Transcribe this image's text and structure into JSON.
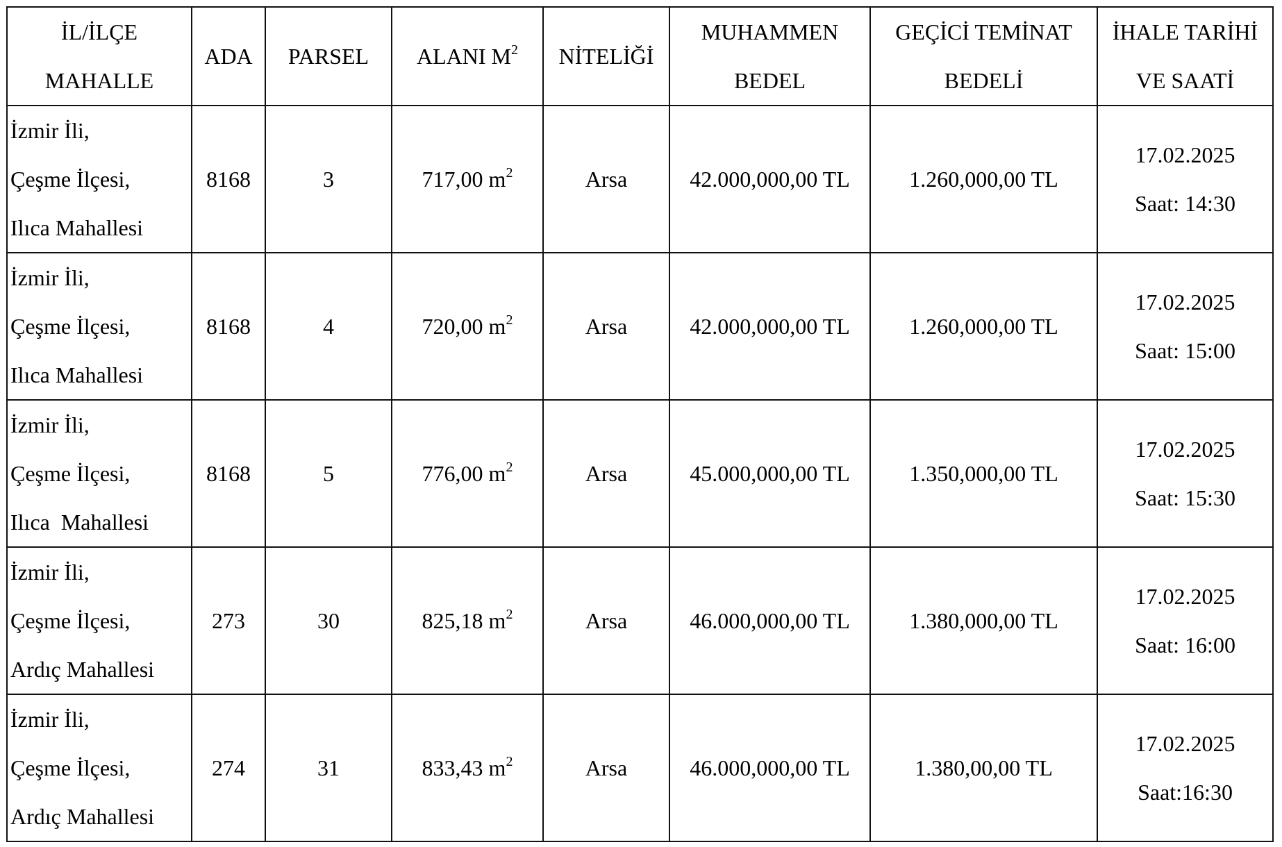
{
  "headers": [
    {
      "lines": [
        "İL/İLÇE",
        "MAHALLE"
      ]
    },
    {
      "lines": [
        "ADA"
      ]
    },
    {
      "lines": [
        "PARSEL"
      ]
    },
    {
      "lines": [
        "ALANI M"
      ],
      "sup": "2"
    },
    {
      "lines": [
        "NİTELİĞİ"
      ]
    },
    {
      "lines": [
        "MUHAMMEN",
        "BEDEL"
      ]
    },
    {
      "lines": [
        "GEÇİCİ TEMİNAT",
        "BEDELİ"
      ]
    },
    {
      "lines": [
        "İHALE TARİHİ",
        "VE SAATİ"
      ]
    }
  ],
  "rows": [
    {
      "location": [
        "İzmir İli,",
        "Çeşme İlçesi,",
        "Ilıca Mahallesi"
      ],
      "ada": "8168",
      "parsel": "3",
      "area": "717,00 m",
      "area_sup": "2",
      "type": "Arsa",
      "price": "42.000,000,00 TL",
      "deposit": "1.260,000,00 TL",
      "date": "17.02.2025",
      "time": "Saat: 14:30"
    },
    {
      "location": [
        "İzmir İli,",
        "Çeşme İlçesi,",
        "Ilıca Mahallesi"
      ],
      "ada": "8168",
      "parsel": "4",
      "area": "720,00 m",
      "area_sup": "2",
      "type": "Arsa",
      "price": "42.000,000,00 TL",
      "deposit": "1.260,000,00 TL",
      "date": "17.02.2025",
      "time": "Saat: 15:00"
    },
    {
      "location": [
        "İzmir İli,",
        "Çeşme İlçesi,",
        "Ilıca  Mahallesi"
      ],
      "ada": "8168",
      "parsel": "5",
      "area": "776,00 m",
      "area_sup": "2",
      "type": "Arsa",
      "price": "45.000,000,00 TL",
      "deposit": "1.350,000,00 TL",
      "date": "17.02.2025",
      "time": "Saat: 15:30"
    },
    {
      "location": [
        "İzmir İli,",
        "Çeşme İlçesi,",
        "Ardıç Mahallesi"
      ],
      "ada": "273",
      "parsel": "30",
      "area": "825,18 m",
      "area_sup": "2",
      "type": "Arsa",
      "price": "46.000,000,00 TL",
      "deposit": "1.380,000,00 TL",
      "date": "17.02.2025",
      "time": "Saat: 16:00"
    },
    {
      "location": [
        "İzmir İli,",
        "Çeşme İlçesi,",
        "Ardıç Mahallesi"
      ],
      "ada": "274",
      "parsel": "31",
      "area": "833,43 m",
      "area_sup": "2",
      "type": "Arsa",
      "price": "46.000,000,00 TL",
      "deposit": "1.380,00,00 TL",
      "date": "17.02.2025",
      "time": "Saat:16:30"
    }
  ]
}
